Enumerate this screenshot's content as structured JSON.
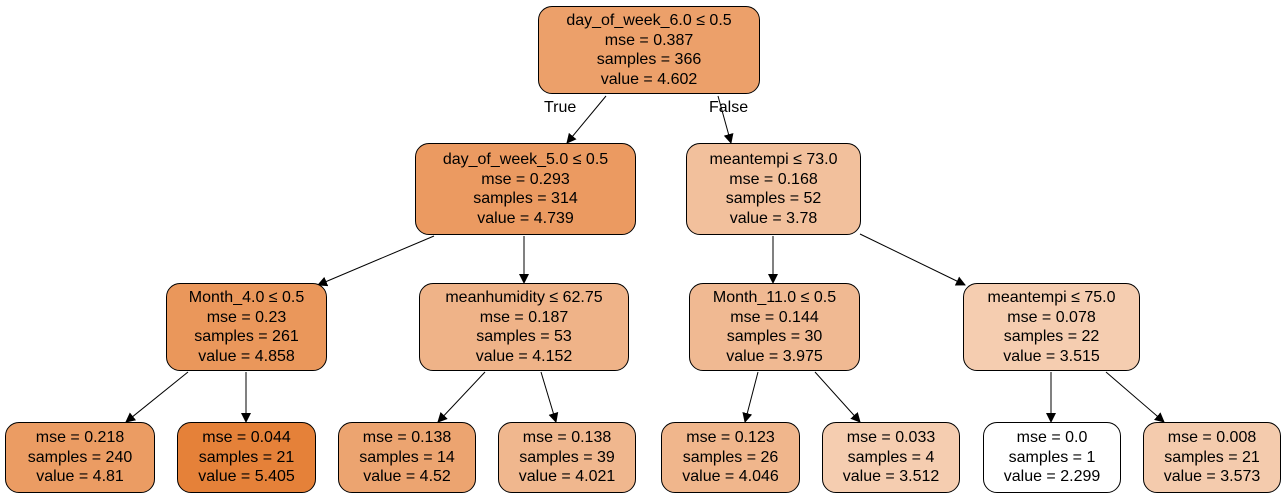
{
  "tree": {
    "nodes": [
      {
        "id": "n0",
        "lines": [
          "day_of_week_6.0 ≤ 0.5",
          "mse = 0.387",
          "samples = 366",
          "value = 4.602"
        ],
        "fill": "#eca06a"
      },
      {
        "id": "n1",
        "lines": [
          "day_of_week_5.0 ≤ 0.5",
          "mse = 0.293",
          "samples = 314",
          "value = 4.739"
        ],
        "fill": "#eb9a61"
      },
      {
        "id": "n2",
        "lines": [
          "meantempi ≤ 73.0",
          "mse = 0.168",
          "samples = 52",
          "value = 3.78"
        ],
        "fill": "#f2c09c"
      },
      {
        "id": "n3",
        "lines": [
          "Month_4.0 ≤ 0.5",
          "mse = 0.23",
          "samples = 261",
          "value = 4.858"
        ],
        "fill": "#ea975b"
      },
      {
        "id": "n4",
        "lines": [
          "meanhumidity ≤ 62.75",
          "mse = 0.187",
          "samples = 53",
          "value = 4.152"
        ],
        "fill": "#efb388"
      },
      {
        "id": "n5",
        "lines": [
          "Month_11.0 ≤ 0.5",
          "mse = 0.144",
          "samples = 30",
          "value = 3.975"
        ],
        "fill": "#f0b992"
      },
      {
        "id": "n6",
        "lines": [
          "meantempi ≤ 75.0",
          "mse = 0.078",
          "samples = 22",
          "value = 3.515"
        ],
        "fill": "#f5cdb0"
      },
      {
        "id": "n7",
        "lines": [
          "mse = 0.218",
          "samples = 240",
          "value = 4.81"
        ],
        "fill": "#eb9c63"
      },
      {
        "id": "n8",
        "lines": [
          "mse = 0.044",
          "samples = 21",
          "value = 5.405"
        ],
        "fill": "#e58139"
      },
      {
        "id": "n9",
        "lines": [
          "mse = 0.138",
          "samples = 14",
          "value = 4.52"
        ],
        "fill": "#eca470"
      },
      {
        "id": "n10",
        "lines": [
          "mse = 0.138",
          "samples = 39",
          "value = 4.021"
        ],
        "fill": "#f0b78e"
      },
      {
        "id": "n11",
        "lines": [
          "mse = 0.123",
          "samples = 26",
          "value = 4.046"
        ],
        "fill": "#f0b68c"
      },
      {
        "id": "n12",
        "lines": [
          "mse = 0.033",
          "samples = 4",
          "value = 3.512"
        ],
        "fill": "#f5cdb0"
      },
      {
        "id": "n13",
        "lines": [
          "mse = 0.0",
          "samples = 1",
          "value = 2.299"
        ],
        "fill": "#ffffff"
      },
      {
        "id": "n14",
        "lines": [
          "mse = 0.008",
          "samples = 21",
          "value = 3.573"
        ],
        "fill": "#f4cbad"
      }
    ],
    "edges": [
      {
        "from": "n0",
        "to": "n1"
      },
      {
        "from": "n0",
        "to": "n2"
      },
      {
        "from": "n1",
        "to": "n3"
      },
      {
        "from": "n1",
        "to": "n4"
      },
      {
        "from": "n2",
        "to": "n5"
      },
      {
        "from": "n2",
        "to": "n6"
      },
      {
        "from": "n3",
        "to": "n7"
      },
      {
        "from": "n3",
        "to": "n8"
      },
      {
        "from": "n4",
        "to": "n9"
      },
      {
        "from": "n4",
        "to": "n10"
      },
      {
        "from": "n5",
        "to": "n11"
      },
      {
        "from": "n5",
        "to": "n12"
      },
      {
        "from": "n6",
        "to": "n13"
      },
      {
        "from": "n6",
        "to": "n14"
      }
    ],
    "edge_labels": {
      "true": "True",
      "false": "False"
    }
  }
}
